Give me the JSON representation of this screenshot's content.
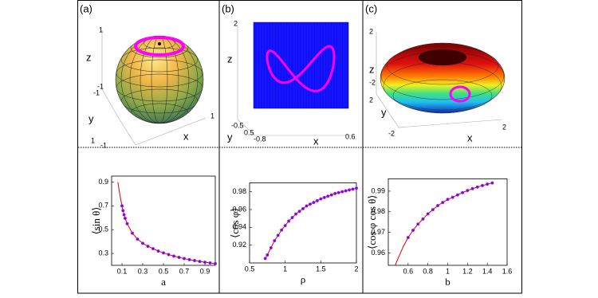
{
  "panels": [
    {
      "texts": [
        "(a)",
        "1",
        "z",
        "-1",
        "-1",
        "y",
        "1",
        "-1",
        "1",
        "x"
      ]
    },
    {
      "texts": [
        "(b)",
        "2",
        "z",
        "-0.5",
        "y",
        "0.5",
        "-0.8",
        "x",
        "0.6"
      ]
    },
    {
      "texts": [
        "(c)",
        "2",
        "z",
        "-2",
        "2",
        "y",
        "-2",
        "x",
        "2"
      ]
    }
  ],
  "chart_data": [
    {
      "type": "line",
      "ylabel": "⟨sin θ⟩",
      "xlabel": "a",
      "x": [
        0.06,
        0.08,
        0.1,
        0.11,
        0.12,
        0.13,
        0.15,
        0.2,
        0.25,
        0.3,
        0.35,
        0.4,
        0.45,
        0.5,
        0.55,
        0.6,
        0.65,
        0.7,
        0.75,
        0.8,
        0.85,
        0.9,
        0.95,
        1.0
      ],
      "series": [
        {
          "color": "#e00000",
          "style": "line",
          "values": [
            0.9,
            0.79,
            0.7,
            0.66,
            0.625,
            0.595,
            0.55,
            0.47,
            0.42,
            0.385,
            0.36,
            0.34,
            0.32,
            0.305,
            0.29,
            0.278,
            0.267,
            0.257,
            0.248,
            0.24,
            0.233,
            0.226,
            0.22,
            0.214
          ]
        },
        {
          "color": "#3030c0",
          "edgecolor": "#ff00ff",
          "style": "markers",
          "values": [
            null,
            null,
            0.7,
            0.66,
            0.625,
            0.595,
            0.55,
            0.47,
            0.42,
            0.385,
            0.36,
            0.34,
            0.32,
            0.305,
            0.29,
            0.278,
            0.267,
            0.257,
            0.248,
            0.24,
            0.233,
            0.226,
            0.22,
            0.214
          ]
        }
      ],
      "xlim": [
        0,
        1
      ],
      "xticks": [
        0.1,
        0.3,
        0.5,
        0.7,
        0.9
      ],
      "ylim": [
        0.2,
        0.95
      ],
      "yticks": [
        0.3,
        0.5,
        0.7,
        0.9
      ]
    },
    {
      "type": "line",
      "ylabel": "⟨cos φ⟩",
      "xlabel": "ρ",
      "x": [
        0.72,
        0.75,
        0.8,
        0.85,
        0.9,
        0.95,
        1.0,
        1.05,
        1.1,
        1.15,
        1.2,
        1.25,
        1.3,
        1.35,
        1.4,
        1.45,
        1.5,
        1.55,
        1.6,
        1.65,
        1.7,
        1.75,
        1.8,
        1.85,
        1.9,
        1.95,
        2.0
      ],
      "series": [
        {
          "color": "#e00000",
          "style": "line",
          "values": [
            0.905,
            0.909,
            0.917,
            0.925,
            0.931,
            0.937,
            0.942,
            0.947,
            0.951,
            0.955,
            0.958,
            0.961,
            0.964,
            0.966,
            0.968,
            0.97,
            0.972,
            0.9735,
            0.975,
            0.9765,
            0.978,
            0.979,
            0.98,
            0.981,
            0.982,
            0.983,
            0.984
          ]
        },
        {
          "color": "#3030c0",
          "edgecolor": "#ff00ff",
          "style": "markers",
          "values": [
            0.905,
            0.909,
            0.917,
            0.925,
            0.931,
            0.937,
            0.942,
            0.947,
            0.951,
            0.955,
            0.958,
            0.961,
            0.964,
            0.966,
            0.968,
            0.97,
            0.972,
            0.9735,
            0.975,
            0.9765,
            0.978,
            0.979,
            0.98,
            0.981,
            0.982,
            0.983,
            0.984
          ]
        }
      ],
      "xlim": [
        0.5,
        2
      ],
      "xticks": [
        0.5,
        1,
        1.5,
        2
      ],
      "ylim": [
        0.9,
        0.99
      ],
      "yticks": [
        0.92,
        0.94,
        0.96,
        0.98
      ]
    },
    {
      "type": "line",
      "ylabel": "⟨cos φ cos θ⟩",
      "xlabel": "b",
      "x": [
        0.47,
        0.5,
        0.55,
        0.6,
        0.65,
        0.7,
        0.75,
        0.8,
        0.85,
        0.9,
        0.95,
        1.0,
        1.05,
        1.1,
        1.15,
        1.2,
        1.25,
        1.3,
        1.35,
        1.4,
        1.45
      ],
      "series": [
        {
          "color": "#e00000",
          "style": "line",
          "values": [
            0.954,
            0.9575,
            0.963,
            0.9675,
            0.971,
            0.974,
            0.9765,
            0.979,
            0.981,
            0.983,
            0.9845,
            0.986,
            0.987,
            0.9882,
            0.9893,
            0.9903,
            0.9912,
            0.992,
            0.9927,
            0.9934,
            0.994
          ]
        },
        {
          "color": "#3030c0",
          "edgecolor": "#ff00ff",
          "style": "markers",
          "values": [
            null,
            null,
            null,
            0.9675,
            0.971,
            0.974,
            0.9765,
            0.979,
            0.981,
            0.983,
            0.9845,
            0.986,
            0.987,
            0.9882,
            0.9893,
            0.9903,
            0.9912,
            0.992,
            0.9927,
            0.9934,
            0.994
          ]
        }
      ],
      "xlim": [
        0.4,
        1.6
      ],
      "xticks": [
        0.6,
        0.8,
        1,
        1.2,
        1.4,
        1.6
      ],
      "ylim": [
        0.954,
        0.996
      ],
      "yticks": [
        0.96,
        0.97,
        0.98,
        0.99
      ]
    }
  ]
}
